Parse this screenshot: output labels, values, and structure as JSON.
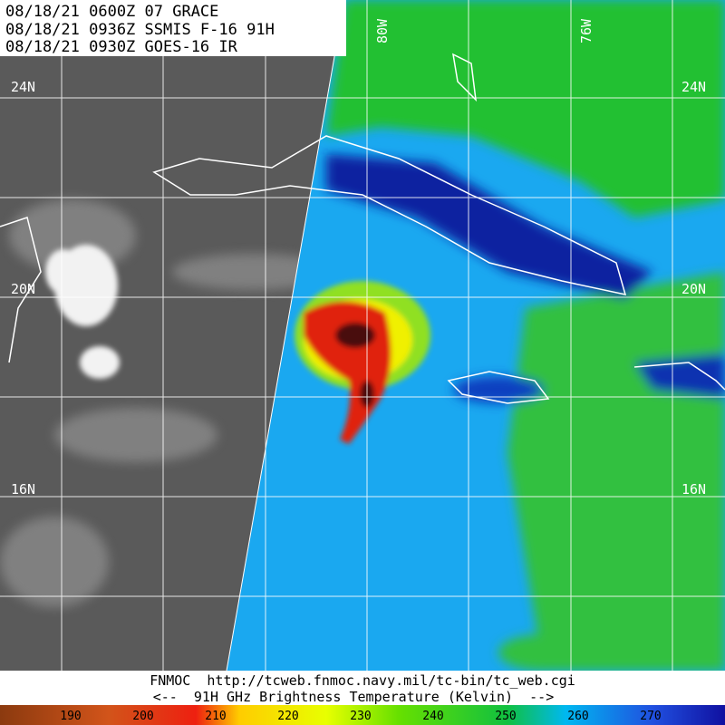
{
  "header": {
    "lines": [
      "08/18/21 0600Z  07 GRACE",
      "08/18/21 0936Z  SSMIS F-16 91H",
      "08/18/21 0930Z  GOES-16 IR"
    ]
  },
  "map": {
    "lat_labels": [
      "24N",
      "20N",
      "16N"
    ],
    "lon_labels": [
      "80W",
      "76W"
    ]
  },
  "footer": {
    "source": "FNMOC  http://tcweb.fnmoc.navy.mil/tc-bin/tc_web.cgi",
    "caption": "<--  91H GHz Brightness Temperature (Kelvin)  -->"
  },
  "colorbar": {
    "ticks": [
      190,
      200,
      210,
      220,
      230,
      240,
      250,
      260,
      270
    ]
  }
}
